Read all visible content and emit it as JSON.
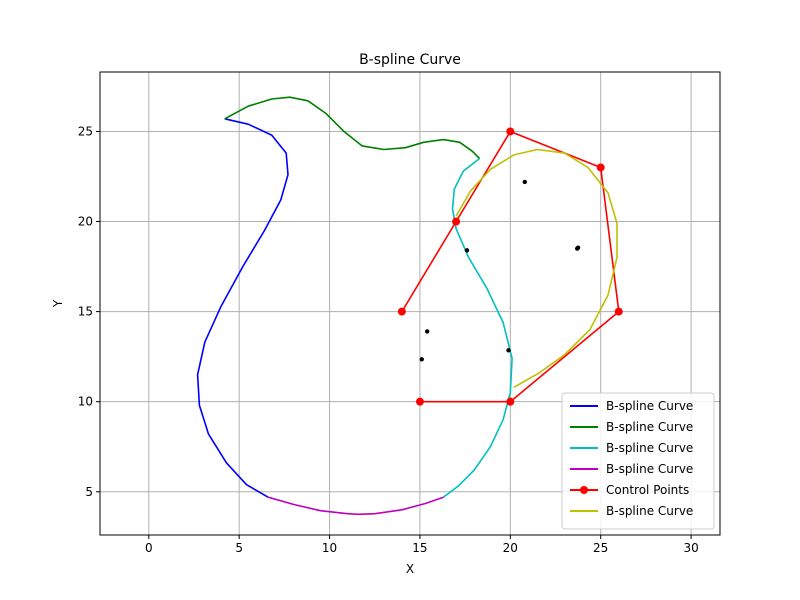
{
  "chart_data": {
    "type": "line",
    "title": "B-spline Curve",
    "xlabel": "X",
    "ylabel": "Y",
    "xlim": [
      -2.7,
      31.6
    ],
    "ylim": [
      2.6,
      28.3
    ],
    "x_ticks": [
      0,
      5,
      10,
      15,
      20,
      25,
      30
    ],
    "y_ticks": [
      5,
      10,
      15,
      20,
      25
    ],
    "grid": true,
    "legend_position": "lower right",
    "series": [
      {
        "name": "B-spline Curve",
        "kind": "line",
        "color": "#0000ff",
        "points": [
          [
            4.2,
            25.7
          ],
          [
            5.5,
            25.4
          ],
          [
            6.8,
            24.8
          ],
          [
            7.6,
            23.8
          ],
          [
            7.7,
            22.6
          ],
          [
            7.3,
            21.2
          ],
          [
            6.4,
            19.5
          ],
          [
            5.2,
            17.5
          ],
          [
            4.0,
            15.3
          ],
          [
            3.1,
            13.3
          ],
          [
            2.7,
            11.5
          ],
          [
            2.8,
            9.8
          ],
          [
            3.3,
            8.2
          ],
          [
            4.3,
            6.6
          ],
          [
            5.4,
            5.4
          ],
          [
            6.6,
            4.7
          ]
        ]
      },
      {
        "name": "B-spline Curve",
        "kind": "line",
        "color": "#008000",
        "points": [
          [
            4.2,
            25.7
          ],
          [
            5.5,
            26.4
          ],
          [
            6.8,
            26.8
          ],
          [
            7.8,
            26.9
          ],
          [
            8.8,
            26.7
          ],
          [
            9.8,
            26.0
          ],
          [
            10.8,
            25.0
          ],
          [
            11.8,
            24.2
          ],
          [
            13.0,
            24.0
          ],
          [
            14.2,
            24.1
          ],
          [
            15.2,
            24.4
          ],
          [
            16.3,
            24.55
          ],
          [
            17.2,
            24.4
          ],
          [
            17.9,
            23.9
          ],
          [
            18.3,
            23.5
          ]
        ]
      },
      {
        "name": "B-spline Curve",
        "kind": "line",
        "color": "#00bfbf",
        "points": [
          [
            18.3,
            23.5
          ],
          [
            17.4,
            22.8
          ],
          [
            16.9,
            21.8
          ],
          [
            16.8,
            20.7
          ],
          [
            17.0,
            19.6
          ],
          [
            17.7,
            18.0
          ],
          [
            18.7,
            16.3
          ],
          [
            19.6,
            14.4
          ],
          [
            20.1,
            12.4
          ],
          [
            20.0,
            10.5
          ],
          [
            19.6,
            9.0
          ],
          [
            18.9,
            7.5
          ],
          [
            18.0,
            6.2
          ],
          [
            17.1,
            5.3
          ],
          [
            16.3,
            4.7
          ]
        ]
      },
      {
        "name": "B-spline Curve",
        "kind": "line",
        "color": "#bf00bf",
        "points": [
          [
            6.6,
            4.7
          ],
          [
            8.0,
            4.3
          ],
          [
            9.5,
            3.95
          ],
          [
            11.0,
            3.78
          ],
          [
            11.6,
            3.75
          ],
          [
            12.5,
            3.78
          ],
          [
            14.0,
            4.0
          ],
          [
            15.3,
            4.35
          ],
          [
            16.3,
            4.7
          ]
        ]
      },
      {
        "name": "Control Points",
        "kind": "line-marker",
        "color": "#ff0000",
        "points": [
          [
            15,
            10
          ],
          [
            20,
            10
          ],
          [
            26,
            15
          ],
          [
            25,
            23
          ],
          [
            20,
            25
          ],
          [
            17,
            20
          ],
          [
            14,
            15
          ]
        ]
      },
      {
        "name": "B-spline Curve",
        "kind": "line",
        "color": "#bfbf00",
        "points": [
          [
            20.2,
            10.8
          ],
          [
            21.6,
            11.6
          ],
          [
            23.0,
            12.6
          ],
          [
            24.4,
            14.0
          ],
          [
            25.4,
            15.9
          ],
          [
            25.9,
            18.0
          ],
          [
            25.9,
            19.9
          ],
          [
            25.4,
            21.6
          ],
          [
            24.3,
            23.0
          ],
          [
            23.0,
            23.8
          ],
          [
            21.5,
            24.0
          ],
          [
            20.2,
            23.7
          ],
          [
            18.9,
            22.9
          ],
          [
            17.8,
            21.7
          ],
          [
            17.0,
            20.3
          ]
        ]
      }
    ],
    "scatter_points": [
      [
        20.8,
        22.2
      ],
      [
        17.6,
        18.4
      ],
      [
        23.7,
        18.5
      ],
      [
        23.75,
        18.55
      ],
      [
        15.4,
        13.9
      ],
      [
        19.9,
        12.85
      ],
      [
        15.1,
        12.35
      ]
    ]
  }
}
